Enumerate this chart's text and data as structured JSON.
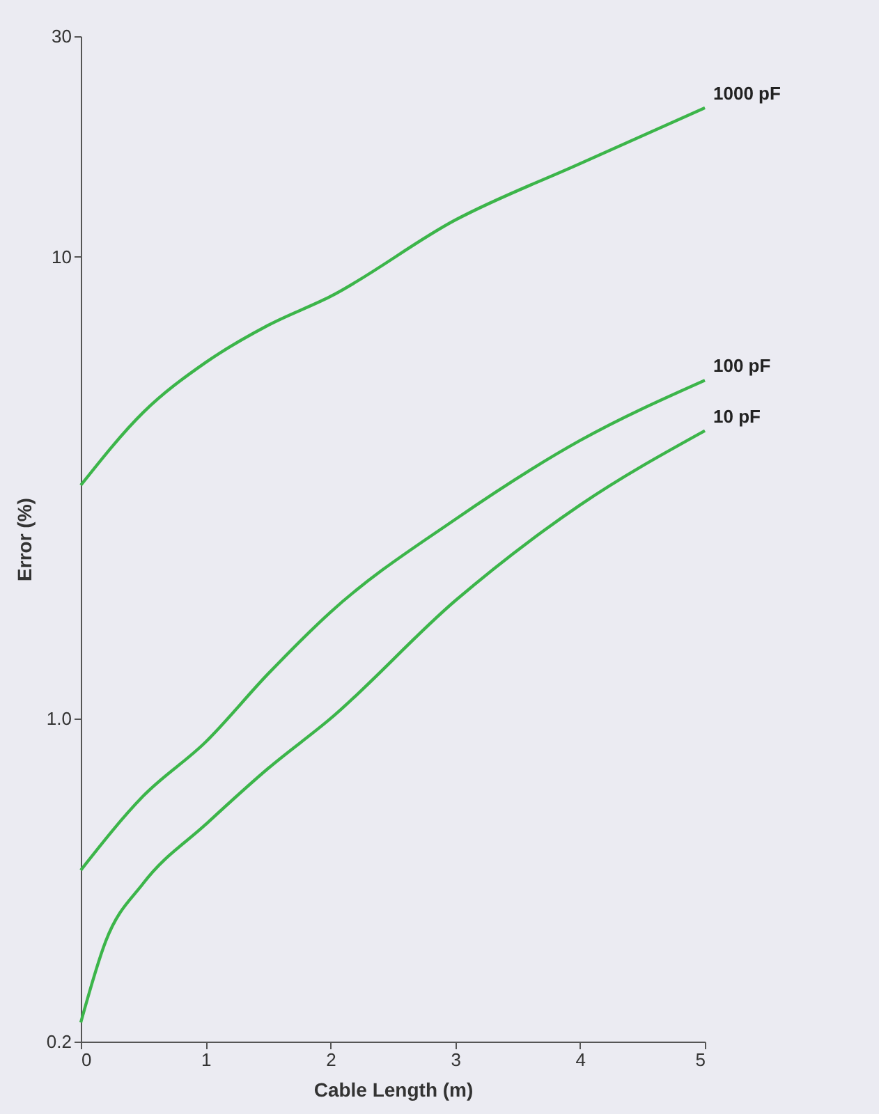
{
  "chart_data": {
    "type": "line",
    "xlabel": "Cable Length (m)",
    "ylabel": "Error (%)",
    "log": "y",
    "grid": false,
    "legend": false,
    "marker": "none",
    "line_style": "solid",
    "xlim": [
      0,
      5
    ],
    "xticks": [
      0,
      1,
      2,
      3,
      4,
      5
    ],
    "ylim": [
      0.2,
      30
    ],
    "yticks": [
      0.2,
      {
        "value": 1,
        "label": "1.0"
      },
      10,
      30
    ],
    "series": [
      {
        "name": "1000 pF",
        "color": "#3cb54a",
        "x": [
          0,
          0.5,
          1,
          1.5,
          2,
          3,
          4,
          5
        ],
        "values": [
          3.2,
          4.6,
          5.9,
          7.1,
          8.2,
          12,
          15.9,
          21
        ]
      },
      {
        "name": "100 pF",
        "color": "#3cb54a",
        "x": [
          0,
          0.5,
          1,
          1.5,
          2,
          3,
          4,
          5
        ],
        "values": [
          0.47,
          0.68,
          0.89,
          1.25,
          1.7,
          2.7,
          4,
          5.4
        ]
      },
      {
        "name": "10 pF",
        "color": "#3cb54a",
        "x": [
          0,
          0.2,
          0.5,
          1,
          1.5,
          2,
          3,
          4,
          5
        ],
        "values": [
          0.22,
          0.33,
          0.44,
          0.59,
          0.78,
          1,
          1.8,
          2.9,
          4.2
        ]
      }
    ]
  }
}
